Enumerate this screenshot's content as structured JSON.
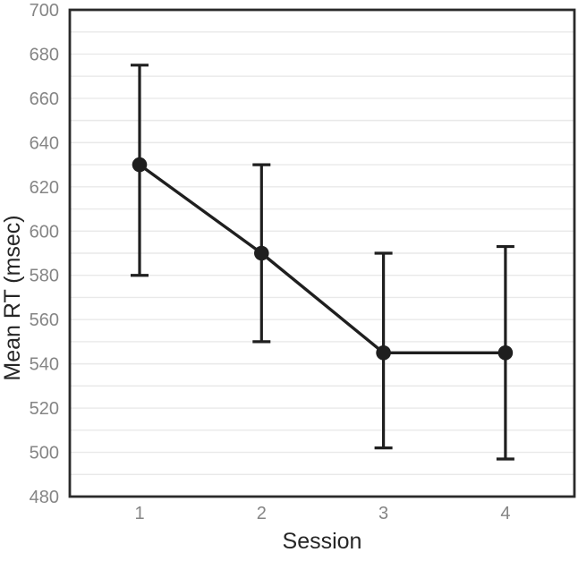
{
  "chart_data": {
    "type": "line",
    "title": "",
    "xlabel": "Session",
    "ylabel": "Mean RT (msec)",
    "x": [
      1,
      2,
      3,
      4
    ],
    "x_tick_labels": [
      "1",
      "2",
      "3",
      "4"
    ],
    "series": [
      {
        "name": "Mean RT",
        "values": [
          630,
          590,
          545,
          545
        ],
        "error_bars": {
          "lower": [
            580,
            550,
            502,
            497
          ],
          "upper": [
            675,
            630,
            590,
            593
          ]
        }
      }
    ],
    "ylim": [
      480,
      700
    ],
    "ytick_step": 20,
    "grid_step": 10,
    "grid": true,
    "legend": false,
    "marker": "circle",
    "colors": {
      "series": "#1f1f1f",
      "grid": "#e9e9e9",
      "axis_border": "#2a2a2a",
      "tick_label": "#858585",
      "axis_title": "#262626",
      "background": "#ffffff"
    }
  }
}
